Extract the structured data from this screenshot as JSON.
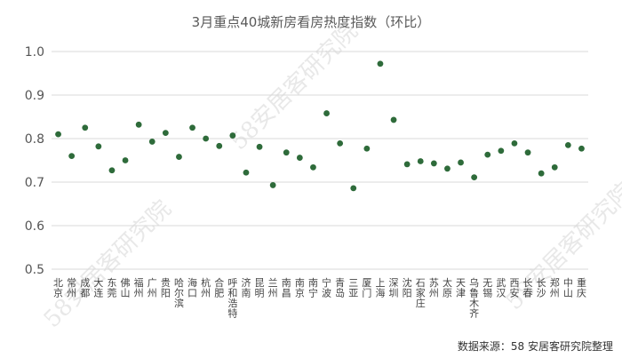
{
  "chart_data": {
    "type": "scatter",
    "title": "3月重点40城新房看房热度指数（环比）",
    "xlabel": "",
    "ylabel": "",
    "ylim": [
      0.5,
      1.0
    ],
    "yticks": [
      "0.5",
      "0.6",
      "0.7",
      "0.8",
      "0.9",
      "1.0"
    ],
    "grid": true,
    "legend": "none",
    "point_color": "#2e6b3a",
    "grid_color": "#d9d9d9",
    "categories": [
      "北京",
      "常州",
      "成都",
      "大连",
      "东莞",
      "佛山",
      "福州",
      "广州",
      "贵阳",
      "哈尔滨",
      "海口",
      "杭州",
      "合肥",
      "呼和浩特",
      "济南",
      "昆明",
      "兰州",
      "南昌",
      "南京",
      "南宁",
      "宁波",
      "青岛",
      "三亚",
      "厦门",
      "上海",
      "深圳",
      "沈阳",
      "石家庄",
      "苏州",
      "太原",
      "天津",
      "乌鲁木齐",
      "无锡",
      "武汉",
      "西安",
      "长春",
      "长沙",
      "郑州",
      "中山",
      "重庆"
    ],
    "values": [
      0.81,
      0.76,
      0.825,
      0.782,
      0.727,
      0.75,
      0.832,
      0.793,
      0.813,
      0.758,
      0.825,
      0.8,
      0.783,
      0.807,
      0.722,
      0.781,
      0.693,
      0.768,
      0.756,
      0.734,
      0.858,
      0.789,
      0.686,
      0.777,
      0.972,
      0.843,
      0.741,
      0.748,
      0.743,
      0.731,
      0.745,
      0.711,
      0.763,
      0.772,
      0.789,
      0.768,
      0.72,
      0.734,
      0.785,
      0.777
    ]
  },
  "source_note": "数据来源：58 安居客研究院整理",
  "watermark": "58安居客研究院"
}
